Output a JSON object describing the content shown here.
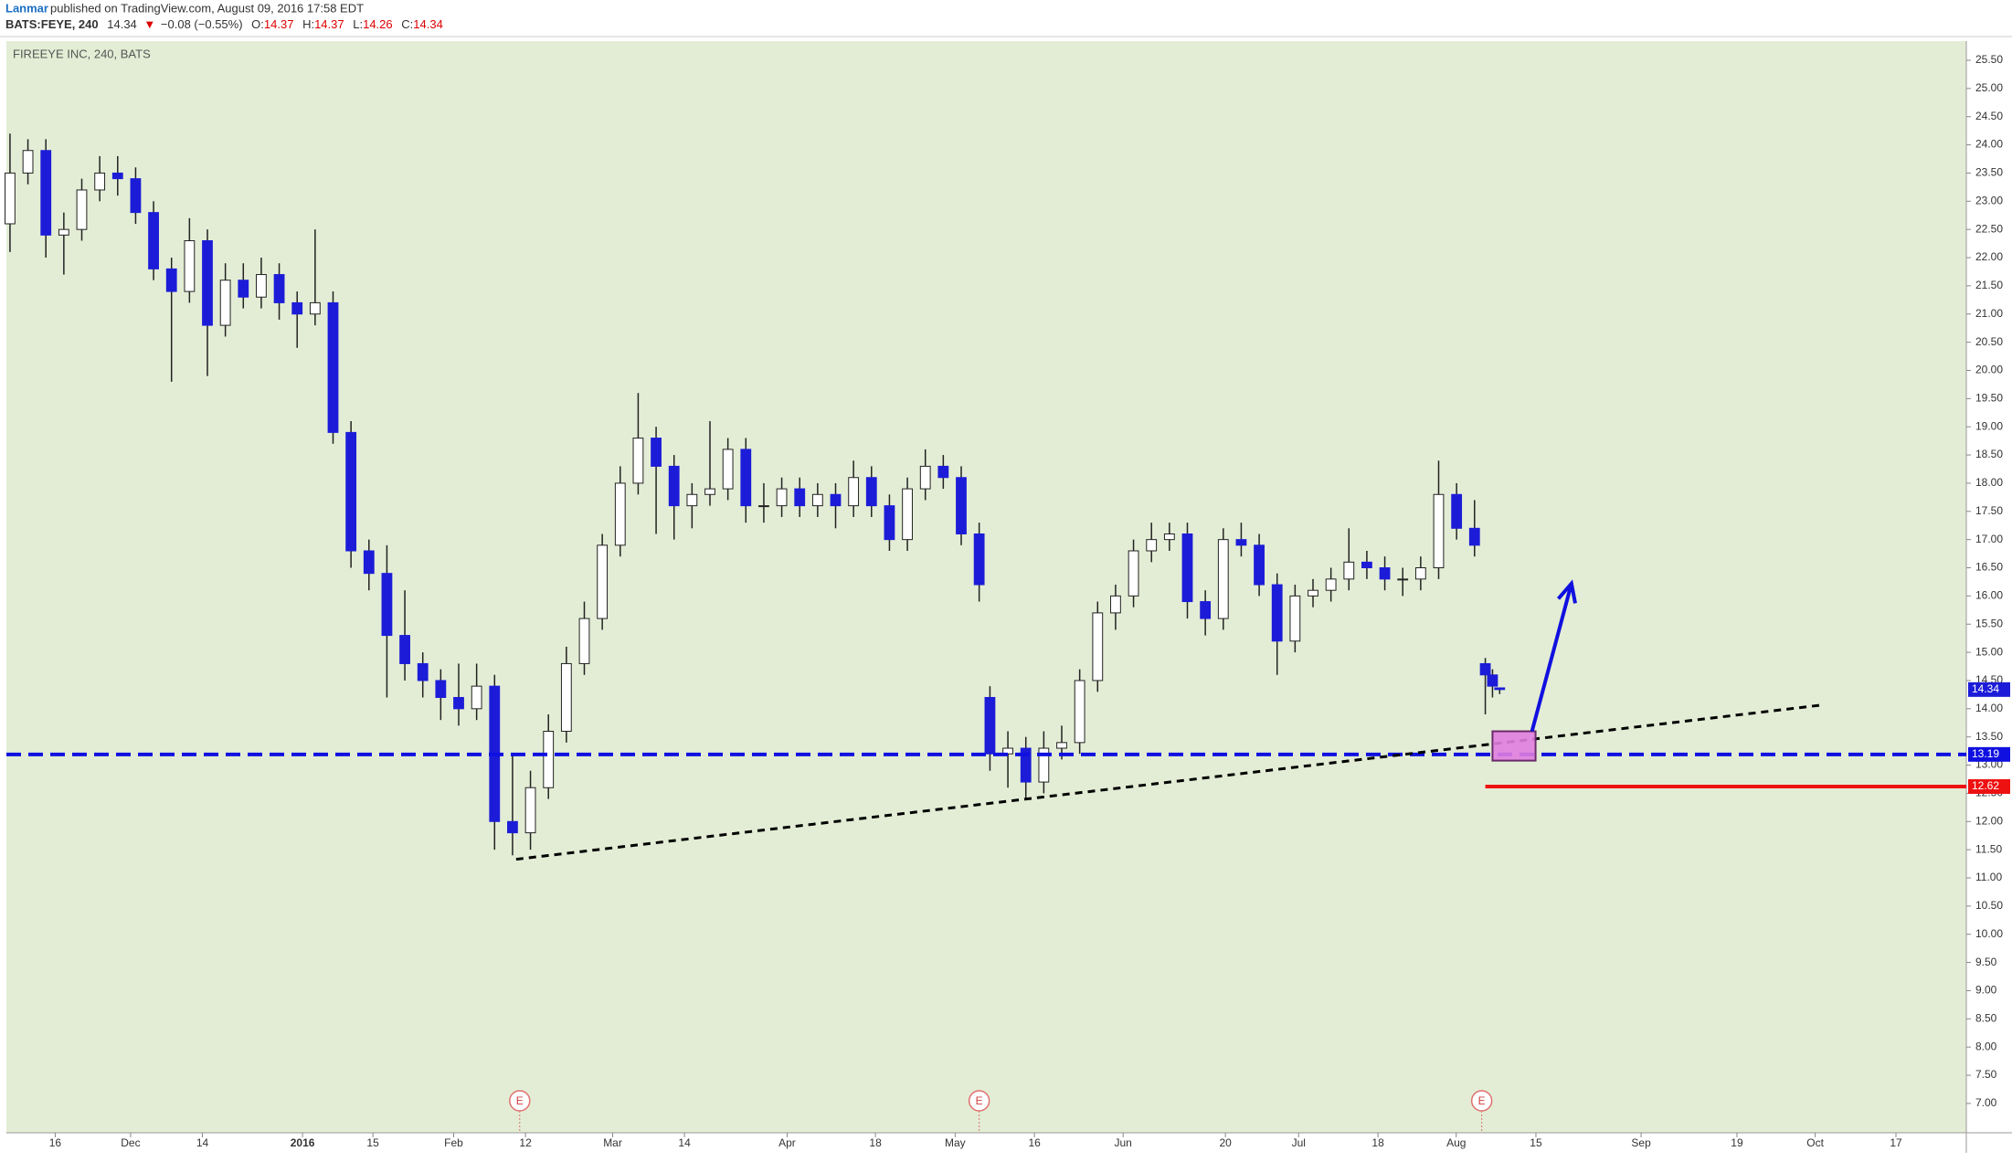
{
  "header": {
    "author": "Lanmar",
    "published": "published on TradingView.com, August 09, 2016 17:58 EDT",
    "symbol": "BATS:FEYE, 240",
    "last": "14.34",
    "arrow": "▼",
    "change": "−0.08 (−0.55%)",
    "o_label": "O:",
    "o": "14.37",
    "h_label": "H:",
    "h": "14.37",
    "l_label": "L:",
    "l": "14.26",
    "c_label": "C:",
    "c": "14.34"
  },
  "chart_data": {
    "type": "candlestick",
    "title": "FIREEYE INC, 240, BATS",
    "up_color": "#ffffff",
    "down_color": "#1c1cd8",
    "wick_color": "#222222",
    "background": "#e3edd5",
    "x": [
      1,
      6,
      11,
      16,
      21,
      26,
      31,
      36,
      41,
      46,
      51,
      56,
      61,
      66,
      71,
      76,
      81,
      86,
      91,
      96,
      101,
      106,
      111,
      116,
      121,
      126,
      131,
      136,
      141,
      146,
      151,
      156,
      161,
      166,
      171,
      176,
      181,
      186,
      191,
      196,
      201,
      206,
      211,
      216,
      221,
      226,
      231,
      236,
      241,
      246,
      251,
      256,
      261,
      266,
      271,
      274,
      279,
      284,
      289,
      294,
      299,
      304,
      309,
      314,
      319,
      324,
      329,
      334,
      339,
      344,
      349,
      354,
      359,
      364,
      369,
      374,
      379,
      384,
      389,
      394,
      399,
      404,
      409,
      412,
      414,
      416
    ],
    "open": [
      22.6,
      23.5,
      23.9,
      22.4,
      22.5,
      23.2,
      23.5,
      23.4,
      22.8,
      21.8,
      21.4,
      22.3,
      20.8,
      21.6,
      21.3,
      21.7,
      21.2,
      21.0,
      21.2,
      18.9,
      16.8,
      16.4,
      15.3,
      14.8,
      14.5,
      14.2,
      14.0,
      14.4,
      12.0,
      11.8,
      12.6,
      13.6,
      14.8,
      15.6,
      16.9,
      18.0,
      18.8,
      18.3,
      17.6,
      17.8,
      17.9,
      18.6,
      17.6,
      17.6,
      17.9,
      17.6,
      17.8,
      17.6,
      18.1,
      17.6,
      17.0,
      17.9,
      18.3,
      18.1,
      17.1,
      14.2,
      13.2,
      13.3,
      12.7,
      13.3,
      13.4,
      14.5,
      15.7,
      16.0,
      16.8,
      17.0,
      17.1,
      15.9,
      15.6,
      17.0,
      16.9,
      16.2,
      15.2,
      16.0,
      16.1,
      16.3,
      16.6,
      16.5,
      16.3,
      16.3,
      16.5,
      17.8,
      17.2,
      14.8,
      14.6,
      14.37
    ],
    "high": [
      24.2,
      24.1,
      24.1,
      22.8,
      23.4,
      23.8,
      23.8,
      23.6,
      23.0,
      22.0,
      22.7,
      22.5,
      21.9,
      21.9,
      22.0,
      21.9,
      21.4,
      22.5,
      21.4,
      19.1,
      17.0,
      16.9,
      16.1,
      15.0,
      14.7,
      14.8,
      14.8,
      14.6,
      13.2,
      12.9,
      13.9,
      15.1,
      15.9,
      17.1,
      18.3,
      19.6,
      19.0,
      18.5,
      18.0,
      19.1,
      18.8,
      18.8,
      18.0,
      18.1,
      18.1,
      18.0,
      18.0,
      18.4,
      18.3,
      17.8,
      18.1,
      18.6,
      18.5,
      18.3,
      17.3,
      14.4,
      13.6,
      13.5,
      13.6,
      13.7,
      14.7,
      15.9,
      16.2,
      17.0,
      17.3,
      17.3,
      17.3,
      16.1,
      17.2,
      17.3,
      17.1,
      16.4,
      16.2,
      16.3,
      16.5,
      17.2,
      16.8,
      16.7,
      16.5,
      16.7,
      18.4,
      18.0,
      17.7,
      14.9,
      14.7,
      14.37
    ],
    "low": [
      22.1,
      23.3,
      22.0,
      21.7,
      22.3,
      23.0,
      23.1,
      22.6,
      21.6,
      19.8,
      21.2,
      19.9,
      20.6,
      21.1,
      21.1,
      20.9,
      20.4,
      20.8,
      18.7,
      16.5,
      16.1,
      14.2,
      14.5,
      14.2,
      13.8,
      13.7,
      13.8,
      11.5,
      11.4,
      11.5,
      12.4,
      13.4,
      14.6,
      15.4,
      16.7,
      17.8,
      17.1,
      17.0,
      17.2,
      17.6,
      17.7,
      17.3,
      17.3,
      17.4,
      17.4,
      17.4,
      17.2,
      17.4,
      17.4,
      16.8,
      16.8,
      17.7,
      17.9,
      16.9,
      15.9,
      12.9,
      12.6,
      12.4,
      12.5,
      13.1,
      13.2,
      14.3,
      15.4,
      15.8,
      16.6,
      16.8,
      15.6,
      15.3,
      15.4,
      16.7,
      16.0,
      14.6,
      15.0,
      15.8,
      15.9,
      16.1,
      16.3,
      16.1,
      16.0,
      16.1,
      16.3,
      17.0,
      16.7,
      13.9,
      14.2,
      14.26
    ],
    "close": [
      23.5,
      23.9,
      22.4,
      22.5,
      23.2,
      23.5,
      23.4,
      22.8,
      21.8,
      21.4,
      22.3,
      20.8,
      21.6,
      21.3,
      21.7,
      21.2,
      21.0,
      21.2,
      18.9,
      16.8,
      16.4,
      15.3,
      14.8,
      14.5,
      14.2,
      14.0,
      14.4,
      12.0,
      11.8,
      12.6,
      13.6,
      14.8,
      15.6,
      16.9,
      18.0,
      18.8,
      18.3,
      17.6,
      17.8,
      17.9,
      18.6,
      17.6,
      17.6,
      17.9,
      17.6,
      17.8,
      17.6,
      18.1,
      17.6,
      17.0,
      17.9,
      18.3,
      18.1,
      17.1,
      16.2,
      13.2,
      13.3,
      12.7,
      13.3,
      13.4,
      14.5,
      15.7,
      16.0,
      16.8,
      17.0,
      17.1,
      15.9,
      15.6,
      17.0,
      16.9,
      16.2,
      15.2,
      16.0,
      16.1,
      16.3,
      16.6,
      16.5,
      16.3,
      16.3,
      16.5,
      17.8,
      17.2,
      16.9,
      14.6,
      14.4,
      14.34
    ],
    "xlim": [
      0,
      546
    ],
    "ylim": [
      6.48,
      25.84
    ],
    "xticks": [
      {
        "value": 13.6,
        "label": "16"
      },
      {
        "value": 34.6,
        "label": "Dec"
      },
      {
        "value": 54.6,
        "label": "14"
      },
      {
        "value": 82.5,
        "label": "2016"
      },
      {
        "value": 102.1,
        "label": "15"
      },
      {
        "value": 124.6,
        "label": "Feb"
      },
      {
        "value": 144.6,
        "label": "12"
      },
      {
        "value": 168.9,
        "label": "Mar"
      },
      {
        "value": 188.9,
        "label": "14"
      },
      {
        "value": 217.5,
        "label": "Apr"
      },
      {
        "value": 242.1,
        "label": "18"
      },
      {
        "value": 264.3,
        "label": "May"
      },
      {
        "value": 286.4,
        "label": "16"
      },
      {
        "value": 311.1,
        "label": "Jun"
      },
      {
        "value": 339.6,
        "label": "20"
      },
      {
        "value": 360,
        "label": "Jul"
      },
      {
        "value": 382.1,
        "label": "18"
      },
      {
        "value": 403.9,
        "label": "Aug"
      },
      {
        "value": 426.1,
        "label": "15"
      },
      {
        "value": 455.4,
        "label": "Sep"
      },
      {
        "value": 482.1,
        "label": "19"
      },
      {
        "value": 503.9,
        "label": "Oct"
      },
      {
        "value": 526.4,
        "label": "17"
      }
    ],
    "yticks": [
      {
        "value": 7,
        "label": "7.00"
      },
      {
        "value": 7.5,
        "label": "7.50"
      },
      {
        "value": 8,
        "label": "8.00"
      },
      {
        "value": 8.5,
        "label": "8.50"
      },
      {
        "value": 9,
        "label": "9.00"
      },
      {
        "value": 9.5,
        "label": "9.50"
      },
      {
        "value": 10,
        "label": "10.00"
      },
      {
        "value": 10.5,
        "label": "10.50"
      },
      {
        "value": 11,
        "label": "11.00"
      },
      {
        "value": 11.5,
        "label": "11.50"
      },
      {
        "value": 12,
        "label": "12.00"
      },
      {
        "value": 12.5,
        "label": "12.50"
      },
      {
        "value": 13,
        "label": "13.00"
      },
      {
        "value": 13.5,
        "label": "13.50"
      },
      {
        "value": 14,
        "label": "14.00"
      },
      {
        "value": 14.5,
        "label": "14.50"
      },
      {
        "value": 15,
        "label": "15.00"
      },
      {
        "value": 15.5,
        "label": "15.50"
      },
      {
        "value": 16,
        "label": "16.00"
      },
      {
        "value": 16.5,
        "label": "16.50"
      },
      {
        "value": 17,
        "label": "17.00"
      },
      {
        "value": 17.5,
        "label": "17.50"
      },
      {
        "value": 18,
        "label": "18.00"
      },
      {
        "value": 18.5,
        "label": "18.50"
      },
      {
        "value": 19,
        "label": "19.00"
      },
      {
        "value": 19.5,
        "label": "19.50"
      },
      {
        "value": 20,
        "label": "20.00"
      },
      {
        "value": 20.5,
        "label": "20.50"
      },
      {
        "value": 21,
        "label": "21.00"
      },
      {
        "value": 21.5,
        "label": "21.50"
      },
      {
        "value": 22,
        "label": "22.00"
      },
      {
        "value": 22.5,
        "label": "22.50"
      },
      {
        "value": 23,
        "label": "23.00"
      },
      {
        "value": 23.5,
        "label": "23.50"
      },
      {
        "value": 24,
        "label": "24.00"
      },
      {
        "value": 24.5,
        "label": "24.50"
      },
      {
        "value": 25,
        "label": "25.00"
      },
      {
        "value": 25.5,
        "label": "25.50"
      }
    ],
    "hlines": [
      {
        "value": 13.19,
        "color": "#1010e0",
        "dashed": true
      },
      {
        "value": 12.62,
        "color": "#ee1111",
        "dashed": false,
        "start": 412
      }
    ],
    "trendline": {
      "x": [
        142,
        505
      ],
      "y": [
        11.33,
        14.06
      ],
      "color": "#000000"
    },
    "box": {
      "x": [
        414,
        426
      ],
      "y": [
        13.08,
        13.6
      ],
      "color": "#e07de0"
    },
    "arrow": {
      "x": [
        425,
        436
      ],
      "y": [
        13.6,
        16.22
      ],
      "color": "#1010e0"
    },
    "earnings": {
      "label": "E",
      "x": [
        143,
        271,
        411
      ]
    }
  }
}
